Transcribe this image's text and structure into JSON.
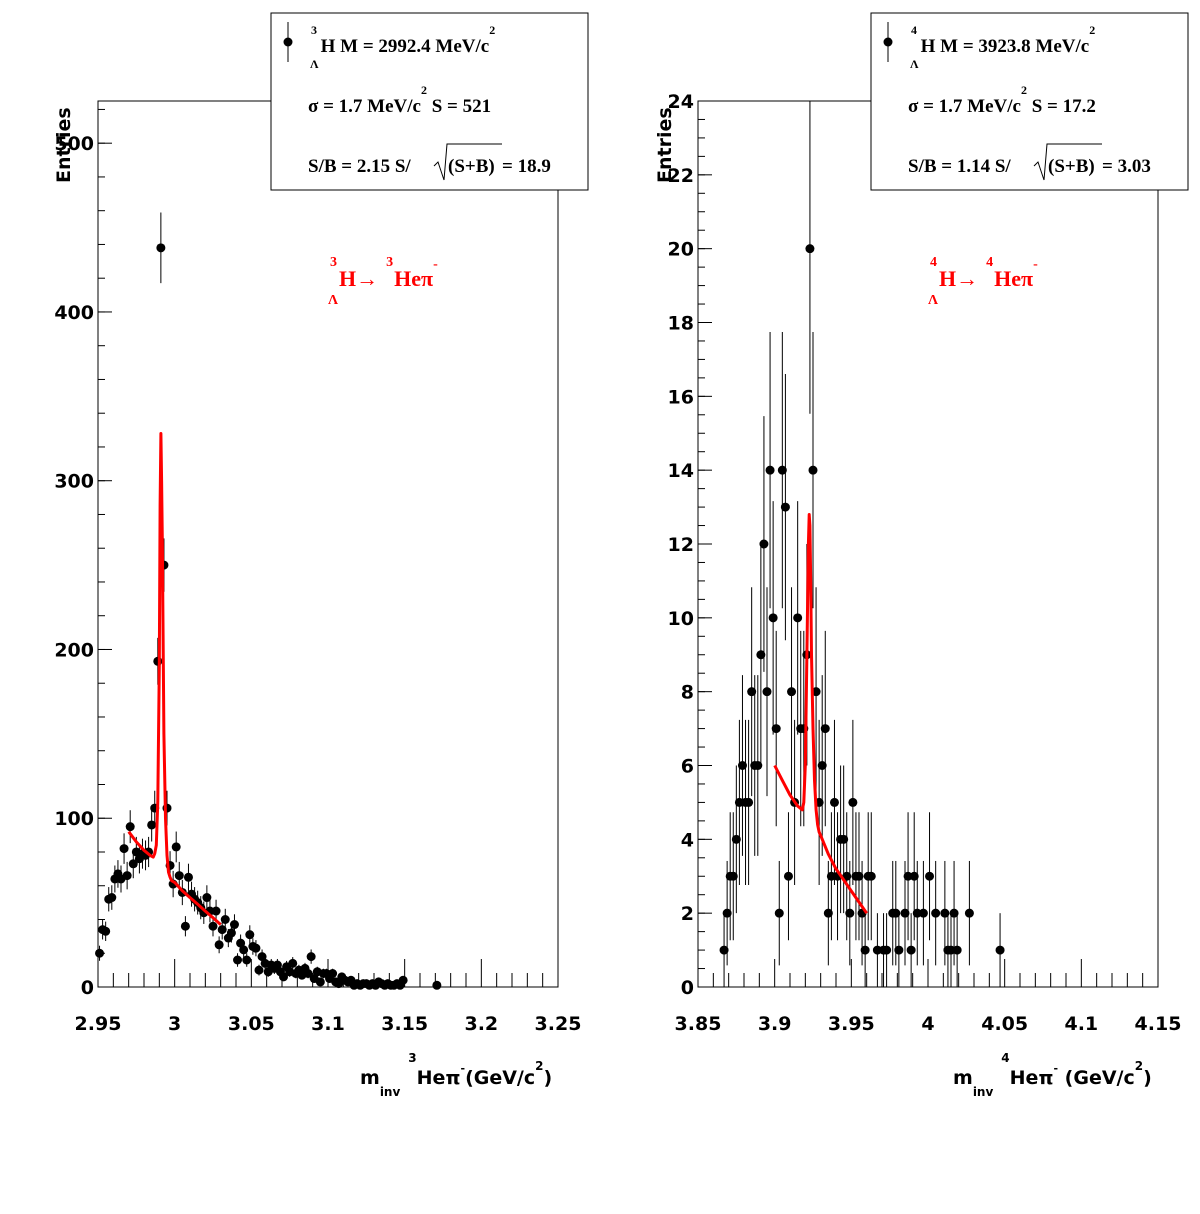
{
  "chart_data": [
    {
      "type": "scatter",
      "xlabel": {
        "main": "m",
        "sub": "inv",
        "pre_sup": "3",
        "mid": "Heπ",
        "mid_sup": "-",
        "post": "(GeV/c",
        "post_sup": "2",
        "end": ")"
      },
      "ylabel": "Entries",
      "xlim": [
        2.95,
        3.25
      ],
      "ylim": [
        0,
        525
      ],
      "xticks": [
        2.95,
        3.0,
        3.05,
        3.1,
        3.15,
        3.2,
        3.25
      ],
      "xtick_labels": [
        "2.95",
        "3",
        "3.05",
        "3.1",
        "3.15",
        "3.2",
        "3.25"
      ],
      "yticks": [
        0,
        100,
        200,
        300,
        400,
        500
      ],
      "ytick_labels": [
        "0",
        "100",
        "200",
        "300",
        "400",
        "500"
      ],
      "annotation": {
        "sup1": "3",
        "sub1": "Λ",
        "main1": "H→",
        "sup2": "3",
        "main2": "Heπ",
        "sup3": "-",
        "color": "#ff0000"
      },
      "legend": {
        "line1": {
          "sup": "3",
          "sub": "Λ",
          "text": "H M = 2992.4 MeV/c",
          "sup_end": "2"
        },
        "line2": {
          "pre": "σ = 1.7 MeV/c",
          "sup": "2",
          "post": " S =  521"
        },
        "line3": {
          "pre": "S/B = 2.15  S/",
          "rad": "(S+B)",
          "post": " = 18.9"
        }
      },
      "series": [
        {
          "name": "data",
          "x": [
            2.951,
            2.953,
            2.955,
            2.957,
            2.959,
            2.961,
            2.963,
            2.965,
            2.967,
            2.969,
            2.971,
            2.973,
            2.975,
            2.977,
            2.979,
            2.981,
            2.983,
            2.985,
            2.987,
            2.989,
            2.991,
            2.993,
            2.995,
            2.997,
            2.999,
            3.001,
            3.003,
            3.005,
            3.007,
            3.009,
            3.011,
            3.013,
            3.015,
            3.017,
            3.019,
            3.021,
            3.023,
            3.025,
            3.027,
            3.029,
            3.031,
            3.033,
            3.035,
            3.037,
            3.039,
            3.041,
            3.043,
            3.045,
            3.047,
            3.049,
            3.051,
            3.053,
            3.055,
            3.057,
            3.059,
            3.061,
            3.063,
            3.065,
            3.067,
            3.069,
            3.071,
            3.073,
            3.075,
            3.077,
            3.079,
            3.081,
            3.083,
            3.085,
            3.087,
            3.089,
            3.091,
            3.093,
            3.095,
            3.097,
            3.099,
            3.101,
            3.103,
            3.105,
            3.107,
            3.109,
            3.111,
            3.113,
            3.115,
            3.117,
            3.119,
            3.121,
            3.123,
            3.125,
            3.127,
            3.129,
            3.131,
            3.133,
            3.135,
            3.137,
            3.139,
            3.141,
            3.143,
            3.145,
            3.147,
            3.149,
            3.171
          ],
          "y": [
            20,
            34,
            33,
            52,
            53,
            64,
            67,
            64,
            82,
            66,
            95,
            73,
            80,
            76,
            79,
            78,
            80,
            96,
            106,
            193,
            438,
            250,
            106,
            72,
            61,
            83,
            66,
            56,
            36,
            65,
            55,
            52,
            50,
            47,
            44,
            53,
            45,
            36,
            45,
            25,
            34,
            40,
            29,
            32,
            37,
            16,
            26,
            22,
            16,
            31,
            24,
            23,
            10,
            18,
            14,
            9,
            13,
            11,
            13,
            9,
            6,
            12,
            9,
            14,
            8,
            10,
            7,
            11,
            8,
            18,
            5,
            9,
            3,
            8,
            8,
            5,
            8,
            3,
            2,
            6,
            4,
            3,
            4,
            1,
            2,
            1,
            2,
            2,
            1,
            2,
            1,
            3,
            2,
            1,
            2,
            1,
            1,
            2,
            1,
            4,
            1
          ]
        },
        {
          "name": "fit",
          "x": [
            2.97,
            2.975,
            2.98,
            2.984,
            2.986,
            2.987,
            2.988,
            2.989,
            2.99,
            2.9905,
            2.991,
            2.9915,
            2.992,
            2.9925,
            2.993,
            2.994,
            2.995,
            2.996,
            2.997,
            2.998,
            3.0,
            3.005,
            3.01,
            3.015,
            3.02,
            3.025,
            3.03
          ],
          "y": [
            92,
            86,
            81,
            78,
            77,
            79,
            84,
            110,
            190,
            285,
            328,
            300,
            260,
            200,
            150,
            100,
            78,
            68,
            65,
            63,
            62,
            57,
            53,
            49,
            45,
            41,
            37
          ]
        }
      ]
    },
    {
      "type": "scatter",
      "xlabel": {
        "main": "m",
        "sub": "inv",
        "pre_sup": "4",
        "mid": "Heπ",
        "mid_sup": "-",
        "post": " (GeV/c",
        "post_sup": "2",
        "end": ")"
      },
      "ylabel": "Entries",
      "xlim": [
        3.85,
        4.15
      ],
      "ylim": [
        0,
        24
      ],
      "xticks": [
        3.85,
        3.9,
        3.95,
        4.0,
        4.05,
        4.1,
        4.15
      ],
      "xtick_labels": [
        "3.85",
        "3.9",
        "3.95",
        "4",
        "4.05",
        "4.1",
        "4.15"
      ],
      "yticks": [
        0,
        2,
        4,
        6,
        8,
        10,
        12,
        14,
        16,
        18,
        20,
        22,
        24
      ],
      "ytick_labels": [
        "0",
        "2",
        "4",
        "6",
        "8",
        "10",
        "12",
        "14",
        "16",
        "18",
        "20",
        "22",
        "24"
      ],
      "annotation": {
        "sup1": "4",
        "sub1": "Λ",
        "main1": "H→",
        "sup2": "4",
        "main2": "Heπ",
        "sup3": "-",
        "color": "#ff0000"
      },
      "legend": {
        "line1": {
          "sup": "4",
          "sub": "Λ",
          "text": "H M = 3923.8 MeV/c",
          "sup_end": "2"
        },
        "line2": {
          "pre": "σ = 1.7 MeV/c",
          "sup": "2",
          "post": " S = 17.2"
        },
        "line3": {
          "pre": "S/B = 1.14  S/",
          "rad": "(S+B)",
          "post": " = 3.03"
        }
      },
      "series": [
        {
          "name": "data",
          "x": [
            3.867,
            3.869,
            3.871,
            3.873,
            3.875,
            3.877,
            3.879,
            3.881,
            3.883,
            3.885,
            3.887,
            3.889,
            3.891,
            3.893,
            3.895,
            3.897,
            3.899,
            3.901,
            3.903,
            3.905,
            3.907,
            3.909,
            3.911,
            3.913,
            3.915,
            3.917,
            3.919,
            3.921,
            3.923,
            3.925,
            3.927,
            3.929,
            3.931,
            3.933,
            3.935,
            3.937,
            3.939,
            3.941,
            3.943,
            3.945,
            3.947,
            3.949,
            3.951,
            3.953,
            3.955,
            3.957,
            3.959,
            3.961,
            3.963,
            3.967,
            3.971,
            3.973,
            3.977,
            3.979,
            3.981,
            3.985,
            3.987,
            3.989,
            3.991,
            3.993,
            3.997,
            4.001,
            4.005,
            4.011,
            4.013,
            4.015,
            4.017,
            4.019,
            4.027,
            4.047
          ],
          "y": [
            1,
            2,
            3,
            3,
            4,
            5,
            6,
            5,
            5,
            8,
            6,
            6,
            9,
            12,
            8,
            14,
            10,
            7,
            2,
            14,
            13,
            3,
            8,
            5,
            10,
            7,
            7,
            9,
            20,
            14,
            8,
            5,
            6,
            7,
            2,
            3,
            5,
            3,
            4,
            4,
            3,
            2,
            5,
            3,
            3,
            2,
            1,
            3,
            3,
            1,
            1,
            1,
            2,
            2,
            1,
            2,
            3,
            1,
            3,
            2,
            2,
            3,
            2,
            2,
            1,
            1,
            2,
            1,
            2,
            1
          ]
        },
        {
          "name": "fit",
          "x": [
            3.9,
            3.905,
            3.91,
            3.915,
            3.918,
            3.919,
            3.92,
            3.921,
            3.922,
            3.9225,
            3.923,
            3.9235,
            3.924,
            3.925,
            3.926,
            3.927,
            3.928,
            3.929,
            3.93,
            3.935,
            3.94,
            3.945,
            3.95,
            3.955,
            3.96
          ],
          "y": [
            6.0,
            5.6,
            5.2,
            4.9,
            4.8,
            5.0,
            6.0,
            9.0,
            12.0,
            12.8,
            12.5,
            11.0,
            9.0,
            7.0,
            5.6,
            4.8,
            4.4,
            4.2,
            4.1,
            3.6,
            3.2,
            2.9,
            2.6,
            2.3,
            2.0
          ]
        }
      ]
    }
  ]
}
